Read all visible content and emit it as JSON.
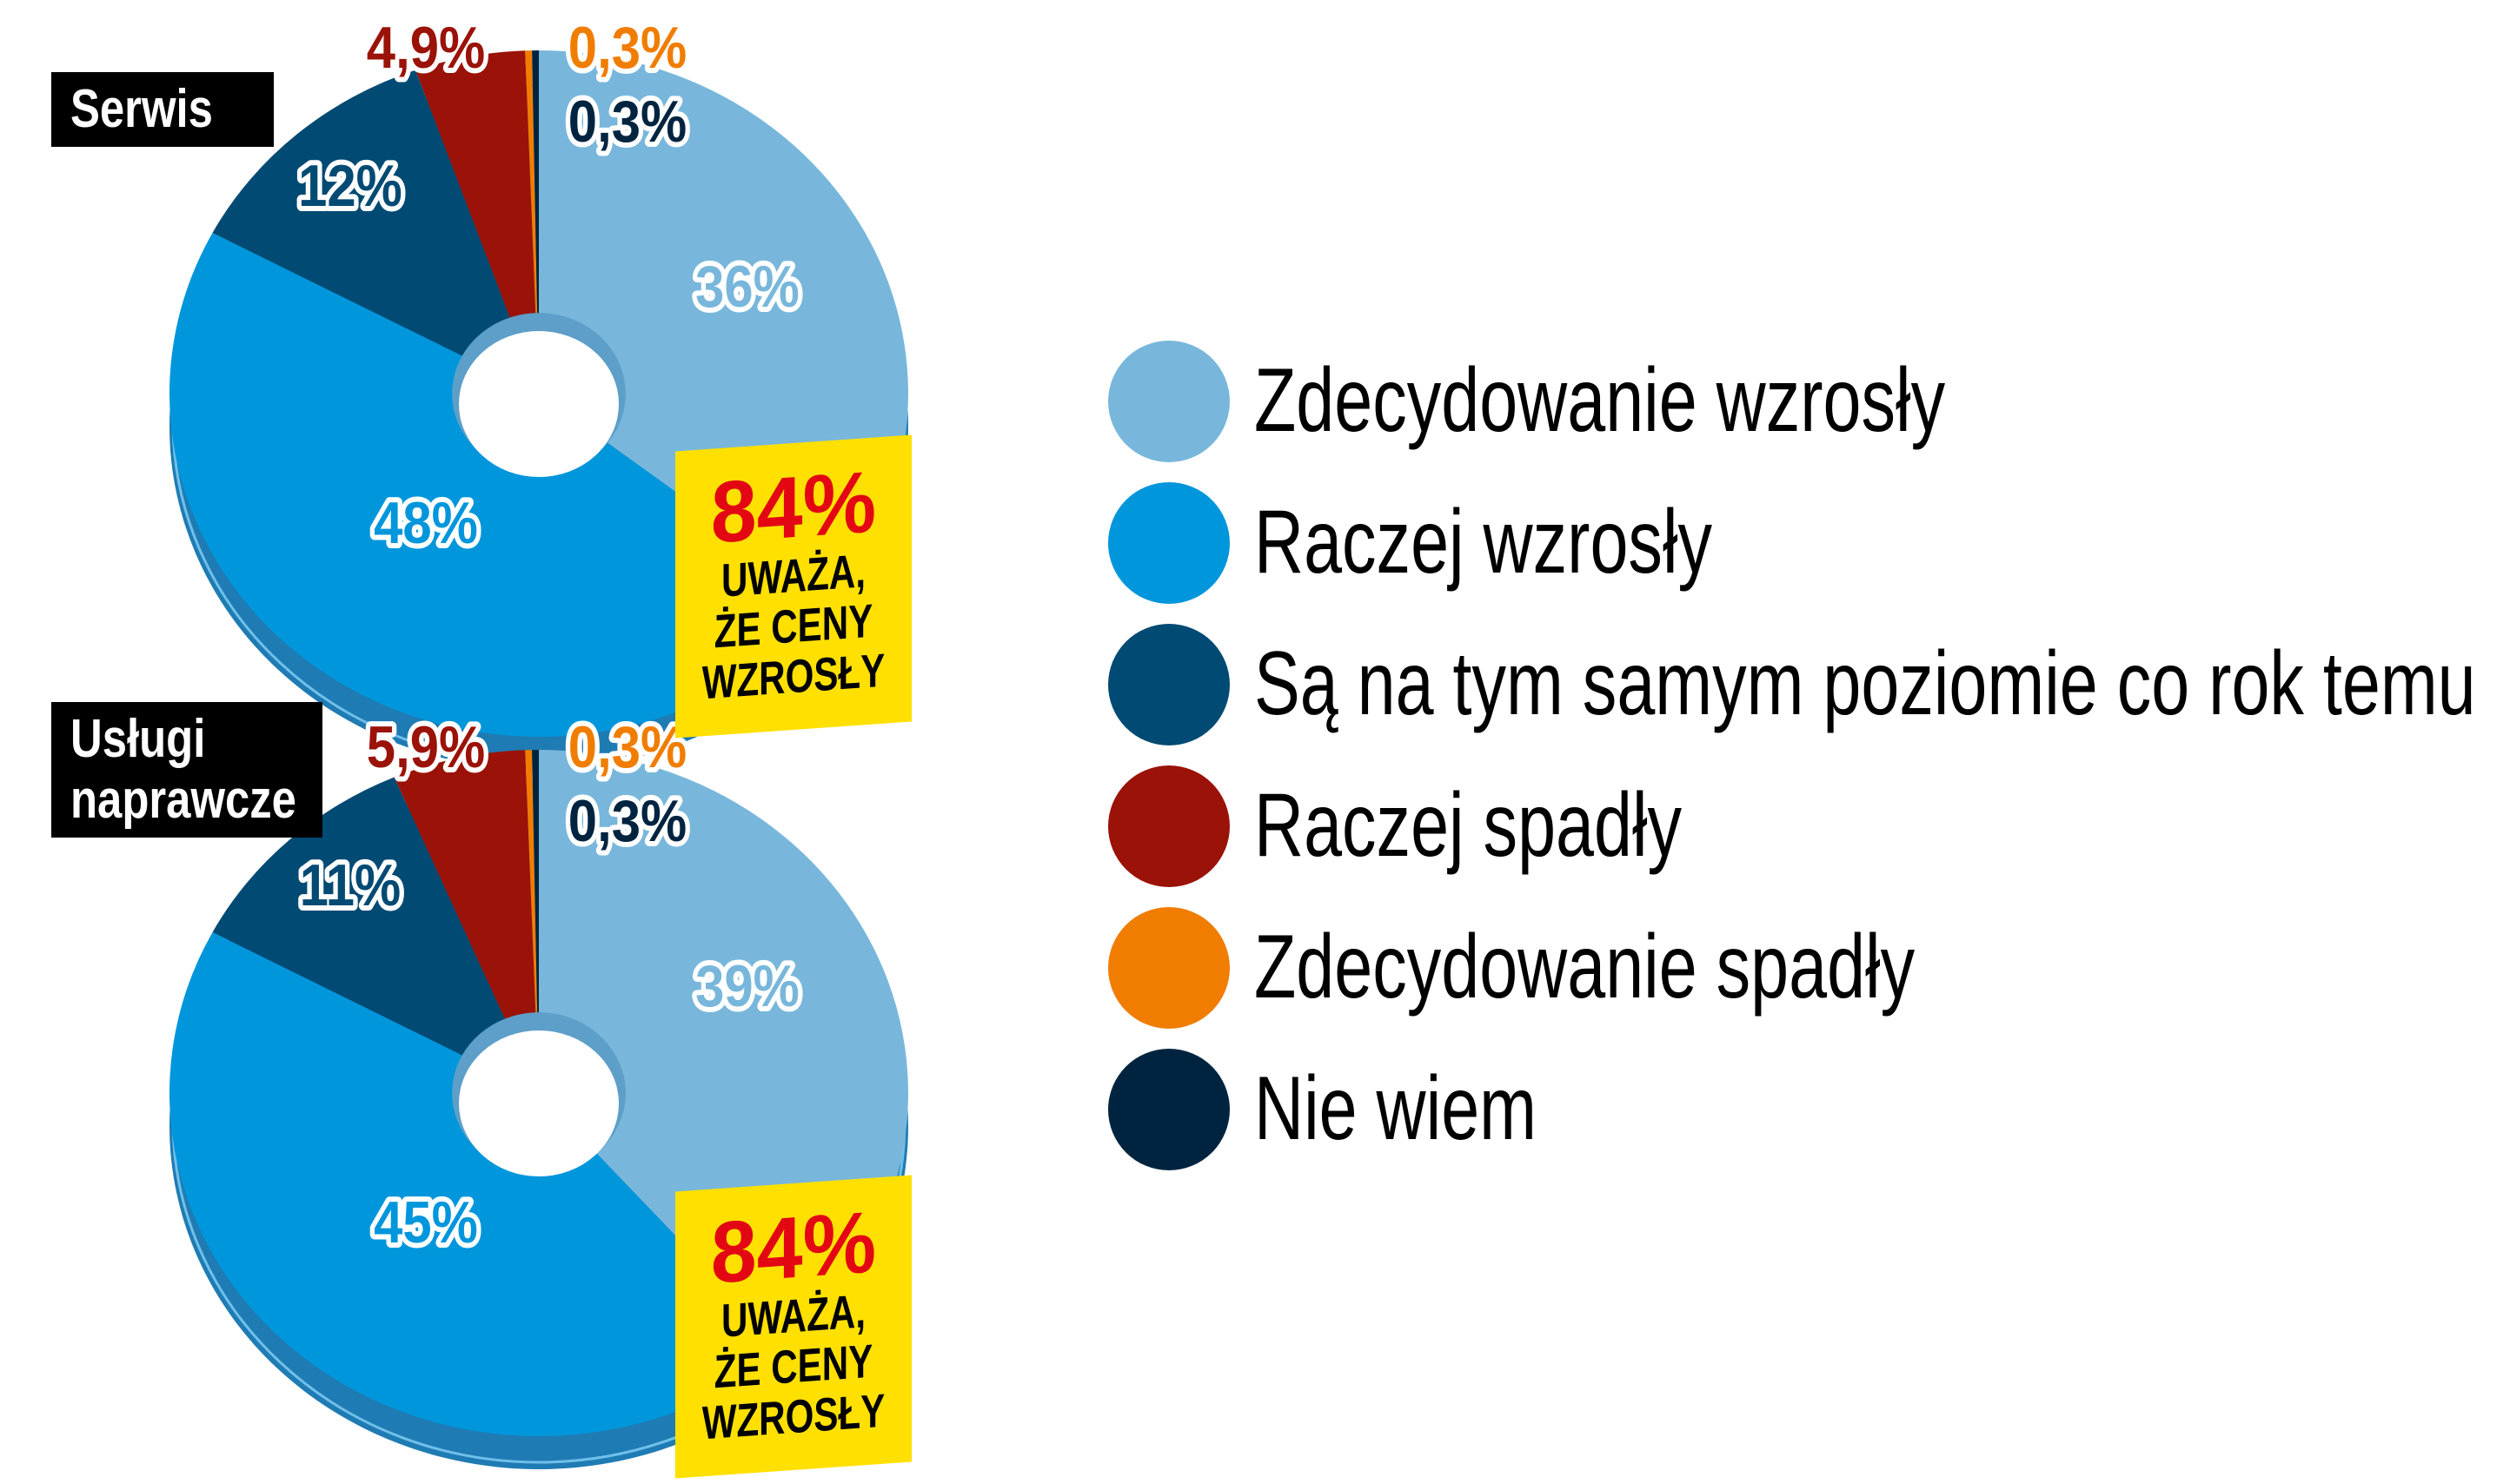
{
  "chart_data": [
    {
      "type": "pie",
      "variant": "donut",
      "title": "Serwis",
      "categories": [
        "Zdecydowanie wzrosły",
        "Raczej wzrosły",
        "Są na tym samym poziomie co rok temu",
        "Raczej spadły",
        "Zdecydowanie spadły",
        "Nie wiem"
      ],
      "values": [
        36,
        48,
        12,
        4.9,
        0.3,
        0.3
      ],
      "labels": [
        "36%",
        "48%",
        "12%",
        "4,9%",
        "0,3%",
        "0,3%"
      ],
      "callout": {
        "value": "84%",
        "line1": "UWAŻA,",
        "line2": "ŻE CENY",
        "line3": "WZROSŁY"
      }
    },
    {
      "type": "pie",
      "variant": "donut",
      "title_line1": "Usługi",
      "title_line2": "naprawcze",
      "categories": [
        "Zdecydowanie wzrosły",
        "Raczej wzrosły",
        "Są na tym samym poziomie co rok temu",
        "Raczej spadły",
        "Zdecydowanie spadły",
        "Nie wiem"
      ],
      "values": [
        39,
        45,
        11,
        5.9,
        0.3,
        0.3
      ],
      "labels": [
        "39%",
        "45%",
        "11%",
        "5,9%",
        "0,3%",
        "0,3%"
      ],
      "callout": {
        "value": "84%",
        "line1": "UWAŻA,",
        "line2": "ŻE CENY",
        "line3": "WZROSŁY"
      }
    }
  ],
  "legend": {
    "position": "right",
    "items": [
      {
        "label": "Zdecydowanie wzrosły",
        "color": "#78b7db"
      },
      {
        "label": "Raczej wzrosły",
        "color": "#0096dc"
      },
      {
        "label": "Są na tym samym poziomie co rok temu",
        "color": "#004a73"
      },
      {
        "label": "Raczej spadły",
        "color": "#9b1208"
      },
      {
        "label": "Zdecydowanie spadły",
        "color": "#f07d00"
      },
      {
        "label": "Nie wiem",
        "color": "#002440"
      }
    ]
  },
  "colors": {
    "callout_bg": "#ffe000",
    "callout_value": "#e30613",
    "tag_bg": "#000000"
  }
}
